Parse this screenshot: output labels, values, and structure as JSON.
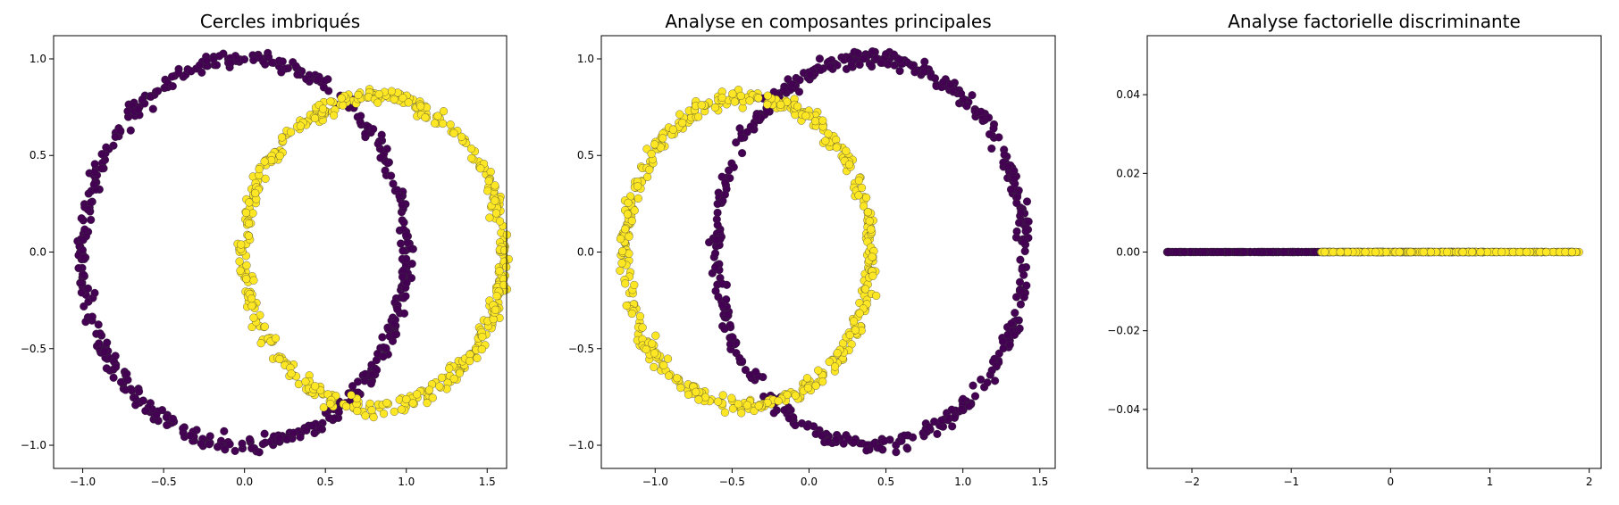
{
  "chart_data": [
    {
      "type": "scatter",
      "title": "Cercles imbriqués",
      "xlabel": "",
      "ylabel": "",
      "xlim": [
        -1.18,
        1.62
      ],
      "ylim": [
        -1.12,
        1.12
      ],
      "xticks": [
        -1.0,
        -0.5,
        0.0,
        0.5,
        1.0,
        1.5
      ],
      "xtick_labels": [
        "−1.0",
        "−0.5",
        "0.0",
        "0.5",
        "1.0",
        "1.5"
      ],
      "yticks": [
        -1.0,
        -0.5,
        0.0,
        0.5,
        1.0
      ],
      "ytick_labels": [
        "−1.0",
        "−0.5",
        "0.0",
        "0.5",
        "1.0"
      ],
      "grid": false,
      "series": [
        {
          "class": 0,
          "color": "#440154",
          "shape": "ring",
          "center": [
            0.0,
            0.0
          ],
          "radius": [
            1.0,
            1.0
          ],
          "noise": 0.02,
          "n": 500
        },
        {
          "class": 1,
          "color": "#fde725",
          "shape": "ring",
          "center": [
            0.8,
            0.0
          ],
          "radius": [
            0.8,
            0.8
          ],
          "noise": 0.02,
          "n": 500
        }
      ]
    },
    {
      "type": "scatter",
      "title": "Analyse en composantes principales",
      "xlabel": "",
      "ylabel": "",
      "xlim": [
        -1.35,
        1.6
      ],
      "ylim": [
        -1.12,
        1.12
      ],
      "xticks": [
        -1.0,
        -0.5,
        0.0,
        0.5,
        1.0,
        1.5
      ],
      "xtick_labels": [
        "−1.0",
        "−0.5",
        "0.0",
        "0.5",
        "1.0",
        "1.5"
      ],
      "yticks": [
        -1.0,
        -0.5,
        0.0,
        0.5,
        1.0
      ],
      "ytick_labels": [
        "−1.0",
        "−0.5",
        "0.0",
        "0.5",
        "1.0"
      ],
      "grid": false,
      "series": [
        {
          "class": 0,
          "color": "#440154",
          "shape": "ring",
          "center": [
            0.4,
            0.0
          ],
          "radius": [
            1.0,
            1.0
          ],
          "noise": 0.02,
          "n": 500
        },
        {
          "class": 1,
          "color": "#fde725",
          "shape": "ring",
          "center": [
            -0.4,
            0.0
          ],
          "radius": [
            0.8,
            0.8
          ],
          "noise": 0.02,
          "n": 500
        }
      ]
    },
    {
      "type": "scatter",
      "title": "Analyse factorielle discriminante",
      "xlabel": "",
      "ylabel": "",
      "xlim": [
        -2.45,
        2.12
      ],
      "ylim": [
        -0.055,
        0.055
      ],
      "xticks": [
        -2,
        -1,
        0,
        1,
        2
      ],
      "xtick_labels": [
        "−2",
        "−1",
        "0",
        "1",
        "2"
      ],
      "yticks": [
        -0.04,
        -0.02,
        0.0,
        0.02,
        0.04
      ],
      "ytick_labels": [
        "−0.04",
        "−0.02",
        "0.00",
        "0.02",
        "0.04"
      ],
      "grid": false,
      "series": [
        {
          "class": 0,
          "color": "#440154",
          "shape": "line",
          "x_range": [
            -2.25,
            0.95
          ],
          "y": 0.0,
          "n": 500
        },
        {
          "class": 1,
          "color": "#fde725",
          "shape": "line",
          "x_range": [
            -0.7,
            1.9
          ],
          "y": 0.0,
          "n": 500
        }
      ]
    }
  ]
}
